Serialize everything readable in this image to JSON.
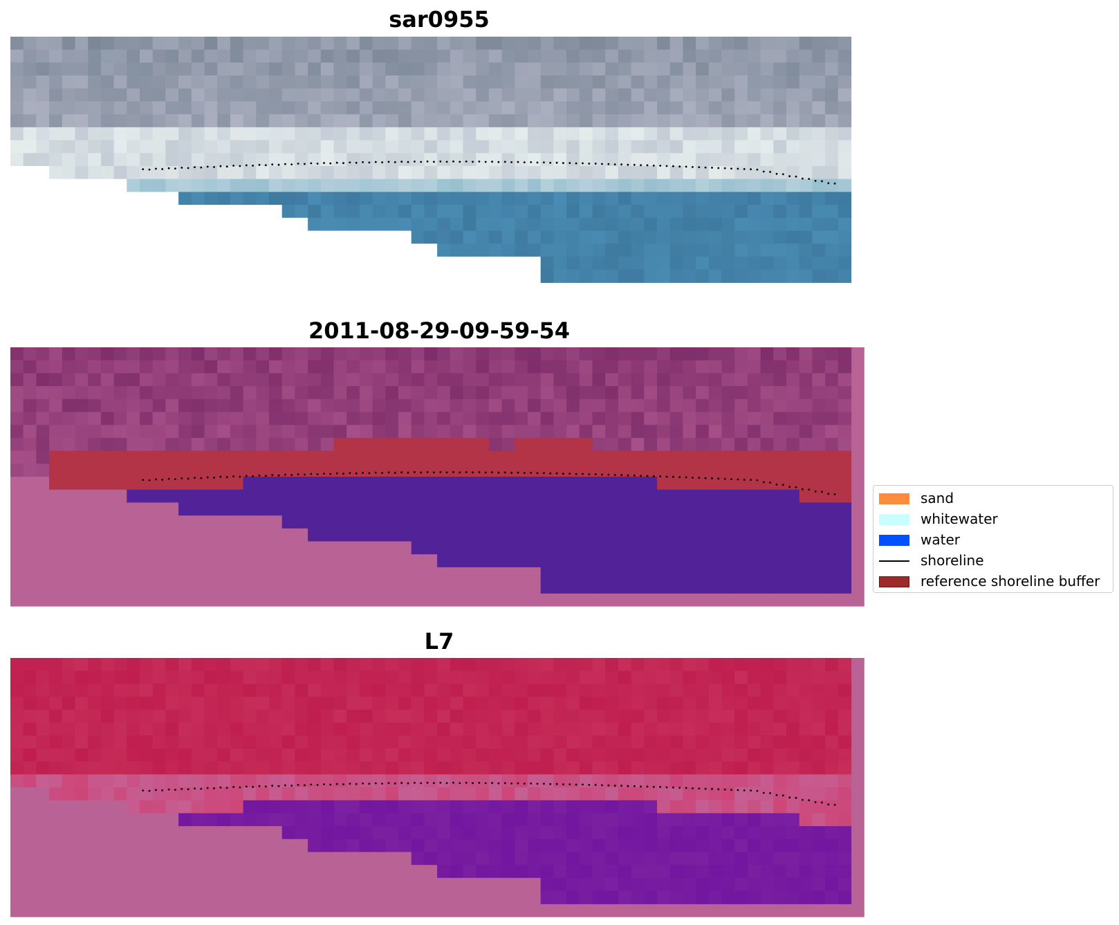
{
  "panels": [
    {
      "title": "sar0955"
    },
    {
      "title": "2011-08-29-09-59-54"
    },
    {
      "title": "L7"
    }
  ],
  "legend": {
    "items": [
      {
        "label": "sand",
        "kind": "patch",
        "color": "#ff8c3c",
        "edge": "none"
      },
      {
        "label": "whitewater",
        "kind": "patch",
        "color": "#c8ffff",
        "edge": "none"
      },
      {
        "label": "water",
        "kind": "patch",
        "color": "#0050ff",
        "edge": "none"
      },
      {
        "label": "shoreline",
        "kind": "line",
        "color": "#000000"
      },
      {
        "label": "reference shoreline buffer",
        "kind": "patch",
        "color": "#9e2b2b",
        "edge": "#6b0f0f"
      }
    ]
  },
  "colors": {
    "nodata_pink": "#b96295",
    "class_water": "#512298",
    "class_buffer": "#b23446",
    "rgb_sky": "#7c8898",
    "rgb_surf": "#e4ecec",
    "rgb_sea": "#3f7aa0",
    "ndwi_land": "#bf1e4e",
    "ndwi_sea": "#7a20a0",
    "shoreline": "#000000"
  }
}
